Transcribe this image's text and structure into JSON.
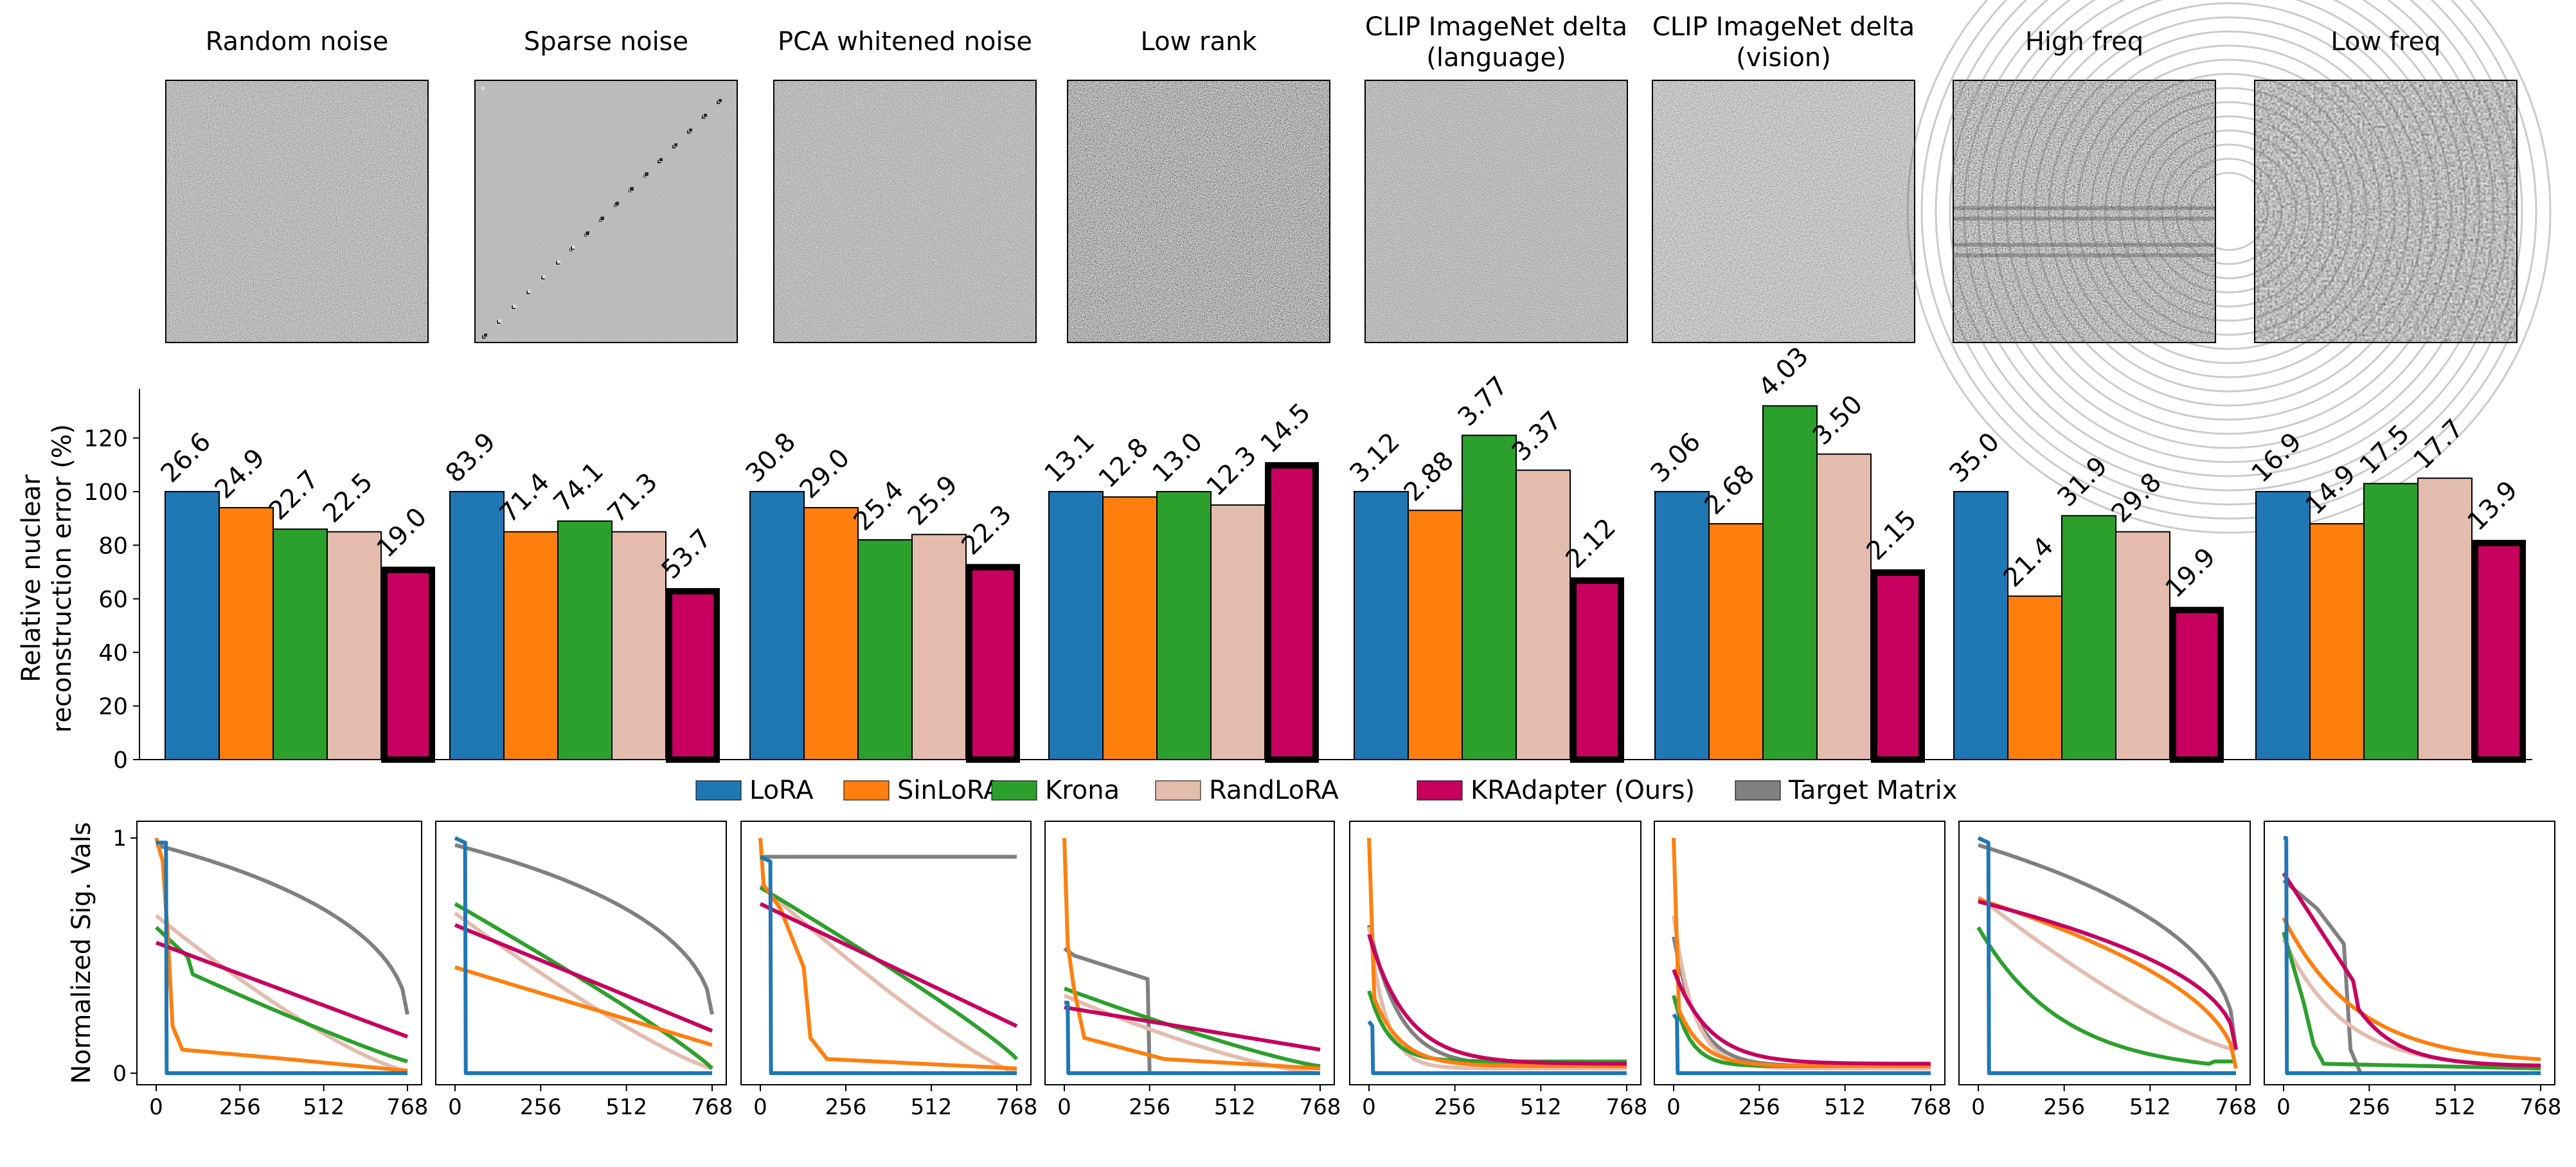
{
  "chart_data": {
    "type": "bar",
    "panels": [
      {
        "title": "Random noise",
        "values": [
          100,
          94,
          86,
          85,
          72
        ],
        "labels": [
          "26.6",
          "24.9",
          "22.7",
          "22.5",
          "19.0"
        ]
      },
      {
        "title": "Sparse noise",
        "values": [
          100,
          85,
          89,
          85,
          64
        ],
        "labels": [
          "83.9",
          "71.4",
          "74.1",
          "71.3",
          "53.7"
        ]
      },
      {
        "title": "PCA whitened noise",
        "values": [
          100,
          94,
          82,
          84,
          73
        ],
        "labels": [
          "30.8",
          "29.0",
          "25.4",
          "25.9",
          "22.3"
        ]
      },
      {
        "title": "Low rank",
        "values": [
          100,
          98,
          100,
          95,
          111
        ],
        "labels": [
          "13.1",
          "12.8",
          "13.0",
          "12.3",
          "14.5"
        ]
      },
      {
        "title": "CLIP ImageNet delta\n(language)",
        "values": [
          100,
          93,
          121,
          108,
          68
        ],
        "labels": [
          "3.12",
          "2.88",
          "3.77",
          "3.37",
          "2.12"
        ]
      },
      {
        "title": "CLIP ImageNet delta\n(vision)",
        "values": [
          100,
          88,
          132,
          114,
          71
        ],
        "labels": [
          "3.06",
          "2.68",
          "4.03",
          "3.50",
          "2.15"
        ]
      },
      {
        "title": "High freq",
        "values": [
          100,
          61,
          91,
          85,
          57
        ],
        "labels": [
          "35.0",
          "21.4",
          "31.9",
          "29.8",
          "19.9"
        ]
      },
      {
        "title": "Low freq",
        "values": [
          100,
          88,
          103,
          105,
          82
        ],
        "labels": [
          "16.9",
          "14.9",
          "17.5",
          "17.7",
          "13.9"
        ]
      }
    ],
    "ylabel": "Relative nuclear\nreconstruction error (%)",
    "ylim": [
      0,
      140
    ],
    "yticks": [
      0,
      20,
      40,
      60,
      80,
      100,
      120
    ],
    "legend": [
      {
        "name": "LoRA",
        "color": "#1f77b4"
      },
      {
        "name": "SinLoRA",
        "color": "#ff7f0e"
      },
      {
        "name": "Krona",
        "color": "#2ca02c"
      },
      {
        "name": "RandLoRA",
        "color": "#e3bcae"
      },
      {
        "name": "KRAdapter (Ours)",
        "color": "#c7005f"
      },
      {
        "name": "Target Matrix",
        "color": "#808080"
      }
    ],
    "lines_ylabel": "Normalized Sig. Vals",
    "lines_xticks": [
      "0",
      "256",
      "512",
      "768"
    ],
    "lines_yticks": [
      "0",
      "1"
    ],
    "lines_xlim": [
      0,
      768
    ],
    "lines_ylim": [
      0,
      1
    ]
  }
}
